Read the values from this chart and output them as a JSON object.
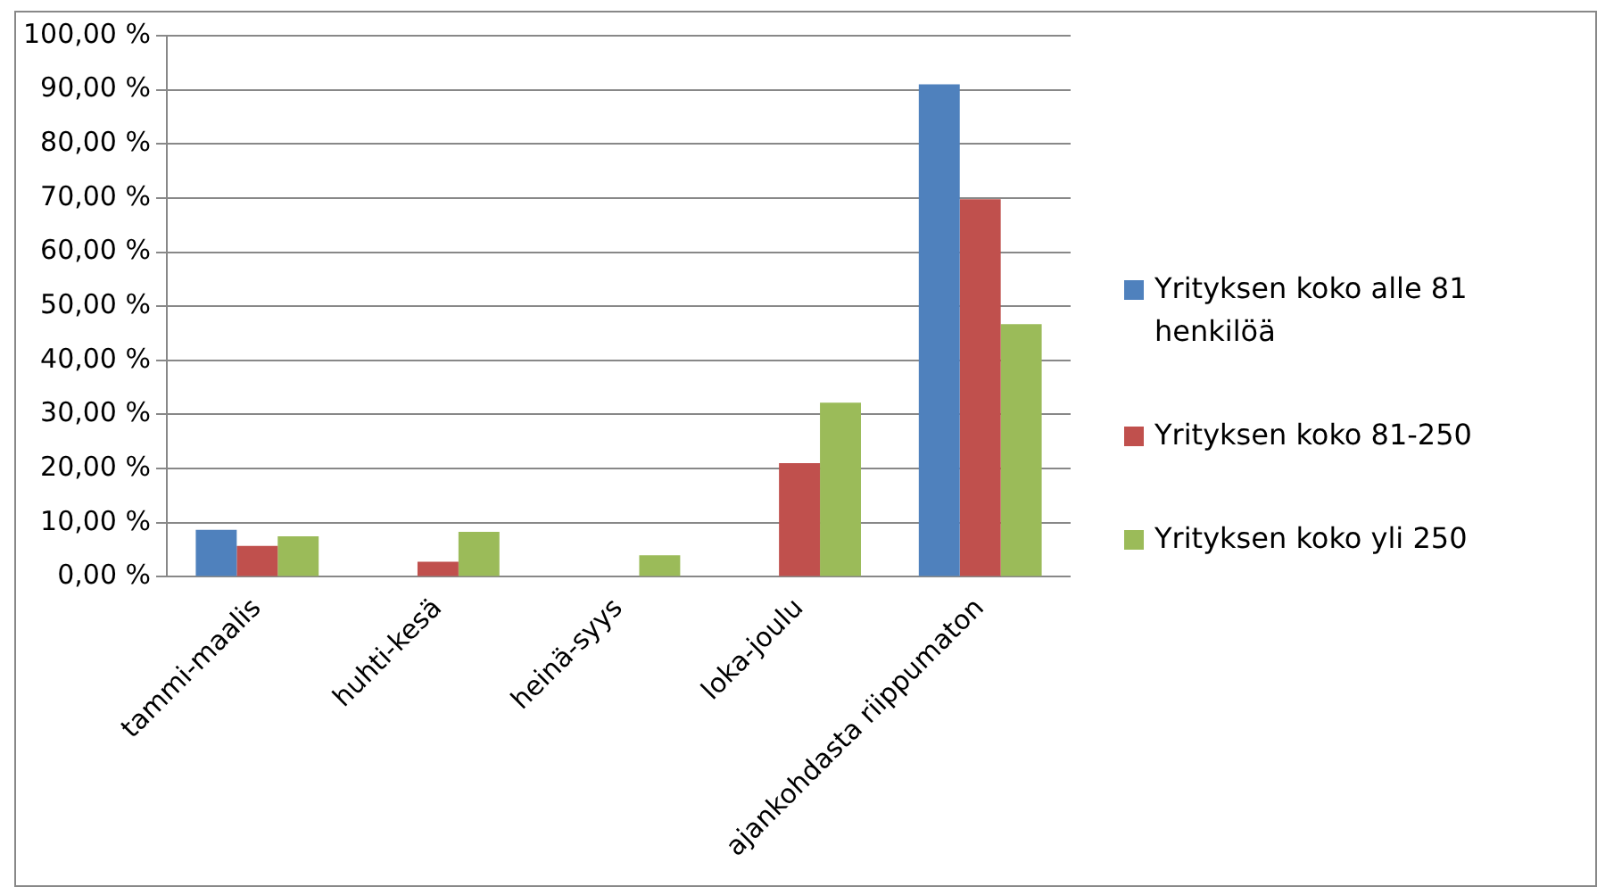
{
  "chart_data": {
    "type": "bar",
    "categories": [
      "tammi-maalis",
      "huhti-kesä",
      "heinä-syys",
      "loka-joulu",
      "ajankohdasta riippumaton"
    ],
    "series": [
      {
        "name": "Yrityksen koko alle 81 henkilöä",
        "color": "#4f81bd",
        "values": [
          8.7,
          0,
          0,
          0,
          91.0
        ]
      },
      {
        "name": "Yrityksen koko 81-250",
        "color": "#c0504d",
        "values": [
          5.7,
          2.8,
          0,
          21.0,
          69.8
        ]
      },
      {
        "name": "Yrityksen koko yli 250",
        "color": "#9bbb59",
        "values": [
          7.5,
          8.3,
          4.0,
          32.2,
          46.7
        ]
      }
    ],
    "ylim": [
      0,
      100
    ],
    "yticks": [
      {
        "value": 0,
        "label": "0,00 %"
      },
      {
        "value": 10,
        "label": "10,00 %"
      },
      {
        "value": 20,
        "label": "20,00 %"
      },
      {
        "value": 30,
        "label": "30,00 %"
      },
      {
        "value": 40,
        "label": "40,00 %"
      },
      {
        "value": 50,
        "label": "50,00 %"
      },
      {
        "value": 60,
        "label": "60,00 %"
      },
      {
        "value": 70,
        "label": "70,00 %"
      },
      {
        "value": 80,
        "label": "80,00 %"
      },
      {
        "value": 90,
        "label": "90,00 %"
      },
      {
        "value": 100,
        "label": "100,00 %"
      }
    ],
    "grid": "y",
    "legend": "right"
  }
}
